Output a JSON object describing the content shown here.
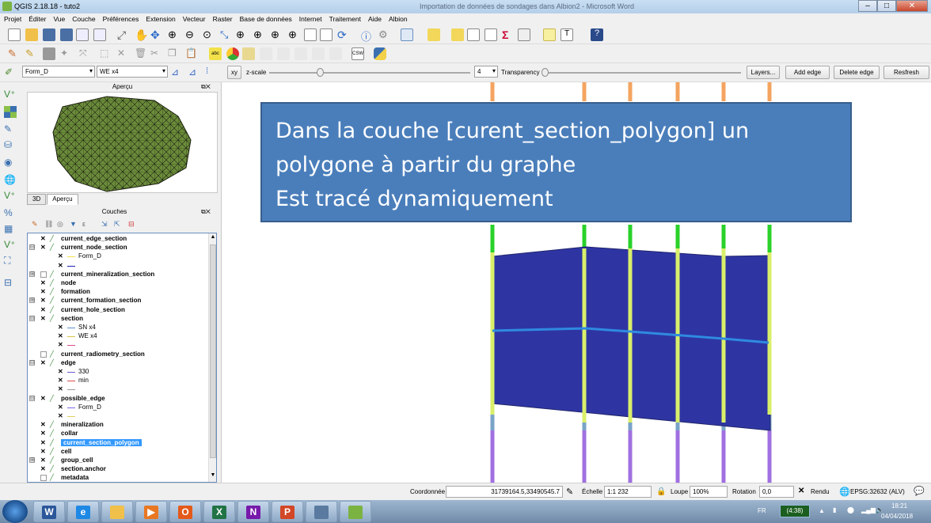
{
  "window": {
    "title": "QGIS 2.18.18 - tuto2",
    "background_title": "Importation de données de sondages dans Albion2 - Microsoft Word",
    "controls": [
      "–",
      "□",
      "✕"
    ]
  },
  "menu": [
    "Projet",
    "Éditer",
    "Vue",
    "Couche",
    "Préférences",
    "Extension",
    "Vecteur",
    "Raster",
    "Base de données",
    "Internet",
    "Traitement",
    "Aide",
    "Albion"
  ],
  "albion_toolbar": {
    "formation_select": "Form_D",
    "section_select": "WE x4",
    "xy_button": "xy",
    "zscale_label": "z-scale",
    "zscale_value": "4",
    "zscale_fraction": 0.25,
    "transparency_label": "Transparency",
    "transparency_fraction": 0.0,
    "layers_button": "Layers...",
    "add_edge_button": "Add edge",
    "delete_edge_button": "Delete edge",
    "refresh_button": "Resfresh"
  },
  "overview_panel": {
    "title": "Aperçu",
    "tabs": [
      "3D",
      "Aperçu"
    ],
    "fill_color": "#6b8c3a"
  },
  "layers_panel": {
    "title": "Couches",
    "rows": [
      {
        "level": 0,
        "name": "current_edge_section",
        "checked": true,
        "expander": "",
        "bold": true
      },
      {
        "level": 0,
        "name": "current_node_section",
        "checked": true,
        "expander": "⊟",
        "bold": true
      },
      {
        "level": 1,
        "name": "Form_D",
        "checked": true,
        "legend": "#f2e14a",
        "bold": false
      },
      {
        "level": 1,
        "name": "",
        "checked": true,
        "legend": "#1f1fb4",
        "bold": false
      },
      {
        "level": 0,
        "name": "current_mineralization_section",
        "checked": false,
        "expander": "⊞",
        "bold": true
      },
      {
        "level": 0,
        "name": "node",
        "checked": true,
        "expander": "",
        "bold": true
      },
      {
        "level": 0,
        "name": "formation",
        "checked": true,
        "expander": "",
        "bold": true
      },
      {
        "level": 0,
        "name": "current_formation_section",
        "checked": true,
        "expander": "⊞",
        "bold": true
      },
      {
        "level": 0,
        "name": "current_hole_section",
        "checked": true,
        "expander": "",
        "bold": true
      },
      {
        "level": 0,
        "name": "section",
        "checked": true,
        "expander": "⊟",
        "bold": true
      },
      {
        "level": 1,
        "name": "SN x4",
        "checked": true,
        "legend": "#5a8fd0",
        "bold": false
      },
      {
        "level": 1,
        "name": "WE x4",
        "checked": true,
        "legend": "#d8c24a",
        "bold": false
      },
      {
        "level": 1,
        "name": "",
        "checked": true,
        "legend": "#d84a8a",
        "bold": false
      },
      {
        "level": 0,
        "name": "current_radiometry_section",
        "checked": false,
        "expander": "",
        "bold": true
      },
      {
        "level": 0,
        "name": "edge",
        "checked": true,
        "expander": "⊟",
        "bold": true
      },
      {
        "level": 1,
        "name": "330",
        "checked": true,
        "legend": "#6a5acd",
        "bold": false
      },
      {
        "level": 1,
        "name": "min",
        "checked": true,
        "legend": "#d84a4a",
        "bold": false
      },
      {
        "level": 1,
        "name": "",
        "checked": true,
        "legend": "#999999",
        "bold": false
      },
      {
        "level": 0,
        "name": "possible_edge",
        "checked": true,
        "expander": "⊟",
        "bold": true
      },
      {
        "level": 1,
        "name": "Form_D",
        "checked": true,
        "legend": "#7b68ee",
        "bold": false
      },
      {
        "level": 1,
        "name": "",
        "checked": true,
        "legend": "#e0d060",
        "bold": false
      },
      {
        "level": 0,
        "name": "mineralization",
        "checked": true,
        "expander": "",
        "bold": true
      },
      {
        "level": 0,
        "name": "collar",
        "checked": true,
        "expander": "",
        "bold": true
      },
      {
        "level": 0,
        "name": "current_section_polygon",
        "checked": true,
        "expander": "",
        "bold": true,
        "selected": true
      },
      {
        "level": 0,
        "name": "cell",
        "checked": true,
        "expander": "",
        "bold": true
      },
      {
        "level": 0,
        "name": "group_cell",
        "checked": true,
        "expander": "⊞",
        "bold": true
      },
      {
        "level": 0,
        "name": "section.anchor",
        "checked": true,
        "expander": "",
        "bold": true
      },
      {
        "level": 0,
        "name": "metadata",
        "checked": false,
        "expander": "",
        "bold": true
      }
    ]
  },
  "callout": {
    "lines": [
      "Dans la couche [curent_section_polygon] un",
      "polygone à partir du graphe",
      "Est tracé dynamiquement"
    ],
    "color": "#4a7ebb"
  },
  "map": {
    "polygon_color": "#2e35a3",
    "blue_line_color": "#2f8ae0",
    "green_color": "#2ad12a",
    "orange_color": "#f4a460",
    "yellow_green_color": "#d9ef6a",
    "steelblue_color": "#7aa3c8",
    "purple_color": "#a070e0"
  },
  "statusbar": {
    "coord_label": "Coordonnée",
    "coord_value": "31739164.5,33490545.7",
    "scale_label": "Échelle",
    "scale_value": "1:1 232",
    "loupe_label": "Loupe",
    "loupe_value": "100%",
    "rotation_label": "Rotation",
    "rotation_value": "0,0",
    "render_label": "Rendu",
    "crs": "EPSG:32632 (ALV)"
  },
  "taskbar": {
    "language": "FR",
    "battery": "(4:38)",
    "time": "18:21",
    "date": "04/04/2018"
  }
}
